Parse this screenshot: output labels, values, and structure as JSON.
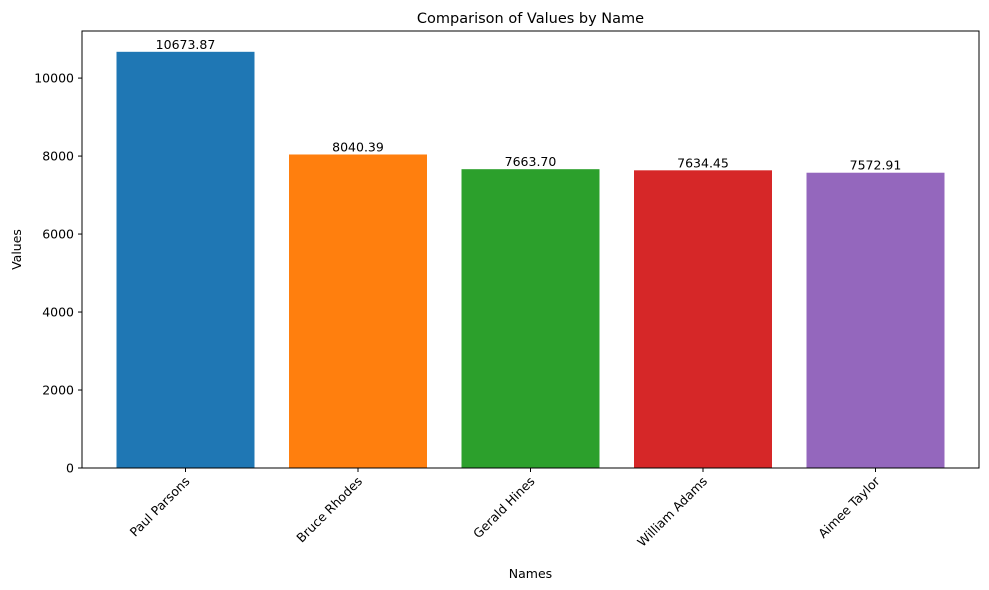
{
  "chart_data": {
    "type": "bar",
    "title": "Comparison of Values by Name",
    "xlabel": "Names",
    "ylabel": "Values",
    "categories": [
      "Paul Parsons",
      "Bruce Rhodes",
      "Gerald Hines",
      "William Adams",
      "Aimee Taylor"
    ],
    "values": [
      10673.87,
      8040.39,
      7663.7,
      7634.45,
      7572.91
    ],
    "value_labels": [
      "10673.87",
      "8040.39",
      "7663.70",
      "7634.45",
      "7572.91"
    ],
    "colors": [
      "#1f77b4",
      "#ff7f0e",
      "#2ca02c",
      "#d62728",
      "#9467bd"
    ],
    "ylim": [
      0,
      11207.56
    ],
    "yticks": [
      0,
      2000,
      4000,
      6000,
      8000,
      10000
    ],
    "ytick_labels": [
      "0",
      "2000",
      "4000",
      "6000",
      "8000",
      "10000"
    ],
    "xtick_rotation_deg": 45,
    "grid": false,
    "legend": "none"
  }
}
